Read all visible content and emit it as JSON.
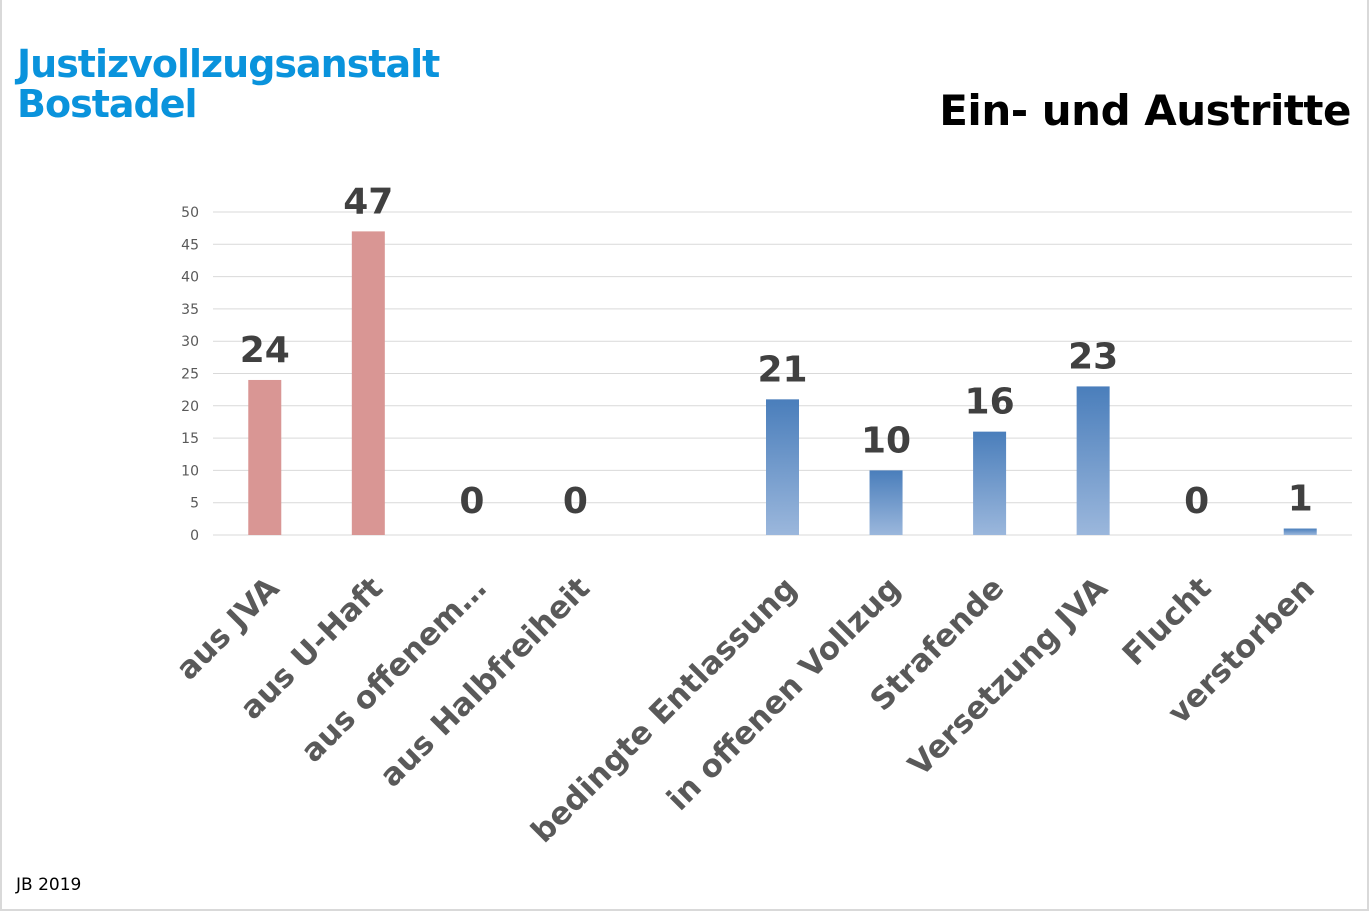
{
  "header": {
    "org_line1": "Justizvollzugsanstalt",
    "org_line2": "Bostadel",
    "title": "Ein- und Austritte"
  },
  "footer": "JB 2019",
  "colors": {
    "org": "#0a93dc",
    "entry_bar": "#d99694",
    "exit_bar_top": "#4a7ebb",
    "exit_bar_bottom": "#9bb7dc",
    "grid": "#d9d9d9"
  },
  "chart_data": {
    "type": "bar",
    "title": "Ein- und Austritte",
    "xlabel": "",
    "ylabel": "",
    "ylim": [
      0,
      50
    ],
    "yticks": [
      0,
      5,
      10,
      15,
      20,
      25,
      30,
      35,
      40,
      45,
      50
    ],
    "grid": true,
    "legend": "none",
    "categories": [
      "aus JVA",
      "aus U-Haft",
      "aus offenem…",
      "aus Halbfreiheit",
      "",
      "bedingte Entlassung",
      "in offenen Vollzug",
      "Strafende",
      "Versetzung JVA",
      "Flucht",
      "verstorben"
    ],
    "values": [
      24,
      47,
      0,
      0,
      null,
      21,
      10,
      16,
      23,
      0,
      1
    ],
    "groups": [
      "entry",
      "entry",
      "entry",
      "entry",
      "gap",
      "exit",
      "exit",
      "exit",
      "exit",
      "exit",
      "exit"
    ]
  }
}
